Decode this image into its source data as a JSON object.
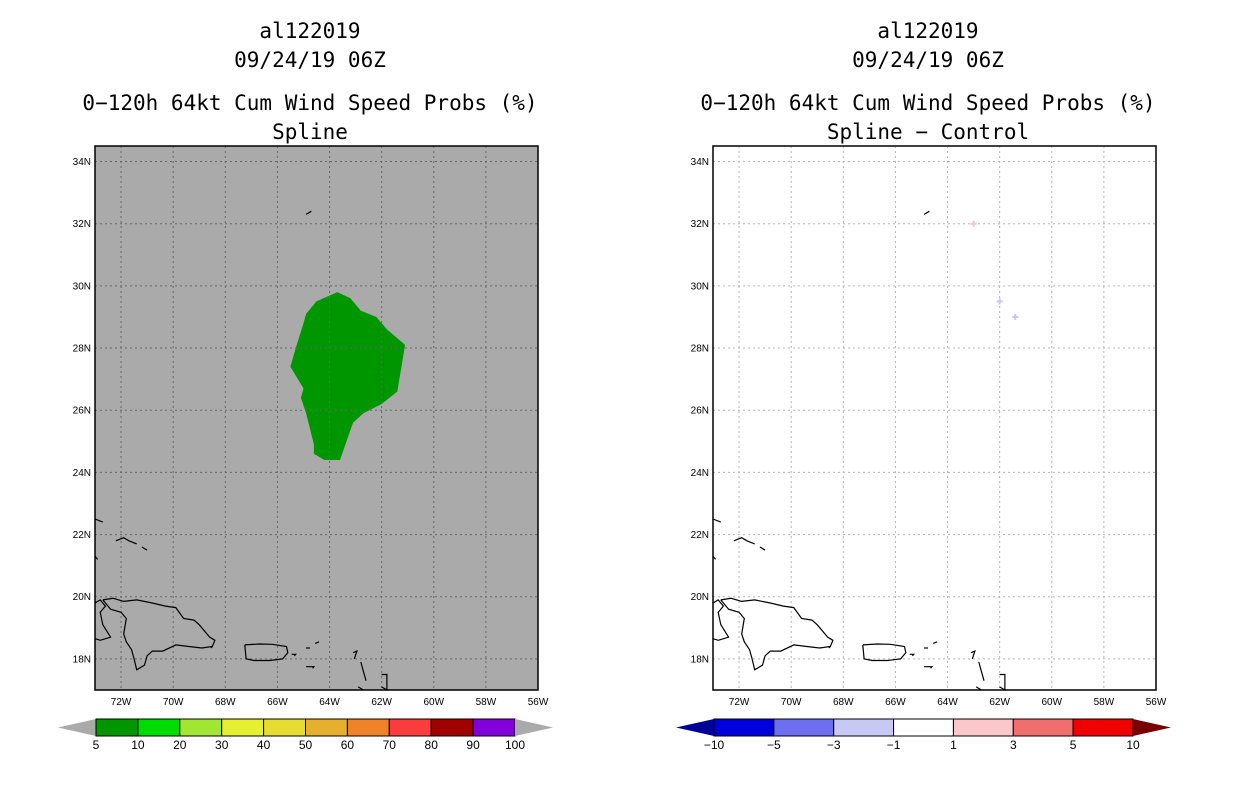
{
  "left_panel": {
    "storm_id": "al122019",
    "datetime": "09/24/19 06Z",
    "title": "0−120h 64kt Cum Wind Speed Probs (%)",
    "subtitle": "Spline"
  },
  "right_panel": {
    "storm_id": "al122019",
    "datetime": "09/24/19 06Z",
    "title": "0−120h 64kt Cum Wind Speed Probs (%)",
    "subtitle": "Spline − Control"
  },
  "chart_data": [
    {
      "type": "map",
      "name": "spline",
      "title": "0−120h 64kt Cum Wind Speed Probs (%)",
      "subtitle": "Spline",
      "xlim": [
        -73,
        -56
      ],
      "ylim": [
        17,
        34.5
      ],
      "lon_ticks": [
        -72,
        -70,
        -68,
        -66,
        -64,
        -62,
        -60,
        -58,
        -56
      ],
      "lon_tick_labels": [
        "72W",
        "70W",
        "68W",
        "66W",
        "64W",
        "62W",
        "60W",
        "58W",
        "56W"
      ],
      "lat_ticks": [
        18,
        20,
        22,
        24,
        26,
        28,
        30,
        32,
        34
      ],
      "lat_tick_labels": [
        "18N",
        "20N",
        "22N",
        "24N",
        "26N",
        "28N",
        "30N",
        "32N",
        "34N"
      ],
      "background_color": "#aaaaaa",
      "grid_color": "#666666",
      "filled_region": {
        "category": "5-10",
        "color": "#009600",
        "polygon_lonlat": [
          [
            -64.5,
            29.5
          ],
          [
            -63.7,
            29.8
          ],
          [
            -63.2,
            29.6
          ],
          [
            -62.8,
            29.2
          ],
          [
            -62.2,
            29.0
          ],
          [
            -61.8,
            28.6
          ],
          [
            -61.1,
            28.1
          ],
          [
            -61.4,
            26.6
          ],
          [
            -62.0,
            26.2
          ],
          [
            -62.7,
            25.9
          ],
          [
            -63.1,
            25.6
          ],
          [
            -63.6,
            24.4
          ],
          [
            -64.2,
            24.4
          ],
          [
            -64.6,
            24.6
          ],
          [
            -64.6,
            24.9
          ],
          [
            -64.9,
            25.9
          ],
          [
            -65.1,
            26.4
          ],
          [
            -65.0,
            26.7
          ],
          [
            -65.5,
            27.4
          ],
          [
            -65.3,
            28.0
          ],
          [
            -65.0,
            28.8
          ],
          [
            -64.9,
            29.1
          ]
        ]
      },
      "colorbar": {
        "labels": [
          "5",
          "10",
          "20",
          "30",
          "40",
          "50",
          "60",
          "70",
          "80",
          "90",
          "100"
        ],
        "colors": [
          "#009600",
          "#00dc00",
          "#a0e632",
          "#e6f032",
          "#e6dc32",
          "#e6af2d",
          "#f08228",
          "#fa3c3c",
          "#a00000",
          "#8200dc"
        ],
        "under_color": "#aaaaaa",
        "over_color": "#aaaaaa"
      }
    },
    {
      "type": "map",
      "name": "spline-minus-control",
      "title": "0−120h 64kt Cum Wind Speed Probs (%)",
      "subtitle": "Spline − Control",
      "xlim": [
        -73,
        -56
      ],
      "ylim": [
        17,
        34.5
      ],
      "lon_ticks": [
        -72,
        -70,
        -68,
        -66,
        -64,
        -62,
        -60,
        -58,
        -56
      ],
      "lon_tick_labels": [
        "72W",
        "70W",
        "68W",
        "66W",
        "64W",
        "62W",
        "60W",
        "58W",
        "56W"
      ],
      "lat_ticks": [
        18,
        20,
        22,
        24,
        26,
        28,
        30,
        32,
        34
      ],
      "lat_tick_labels": [
        "18N",
        "20N",
        "22N",
        "24N",
        "26N",
        "28N",
        "30N",
        "32N",
        "34N"
      ],
      "background_color": "#ffffff",
      "grid_color": "#b4b4b4",
      "diff_points": [
        {
          "lon": -63.0,
          "lat": 32.0,
          "color": "#f5c8c8"
        },
        {
          "lon": -62.0,
          "lat": 29.5,
          "color": "#c8c8f0"
        },
        {
          "lon": -61.4,
          "lat": 29.0,
          "color": "#c8c8f0"
        }
      ],
      "colorbar": {
        "labels": [
          "−10",
          "−5",
          "−3",
          "−1",
          "1",
          "3",
          "5",
          "10"
        ],
        "colors": [
          "#0000dc",
          "#6e6ef0",
          "#c8c8f5",
          "#ffffff",
          "#fac8c8",
          "#f06e6e",
          "#f00000"
        ],
        "under_color": "#000096",
        "over_color": "#780000"
      }
    }
  ]
}
